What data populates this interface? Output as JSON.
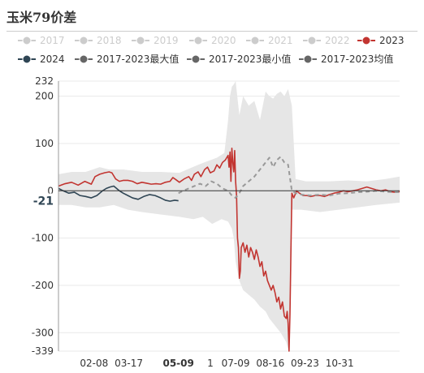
{
  "title": "玉米79价差",
  "colors": {
    "inactive": "#cccccc",
    "active_2023": "#c23531",
    "line_2024": "#2f4554",
    "band_fill": "#e6e6e6",
    "mean": "#999999",
    "grid": "#e9e9e9",
    "axis": "#333333",
    "current_marker": "#2f4554"
  },
  "legend": [
    {
      "label": "2017",
      "color": "#cccccc",
      "icon": "circle",
      "active": false
    },
    {
      "label": "2018",
      "color": "#cccccc",
      "icon": "circle",
      "active": false
    },
    {
      "label": "2019",
      "color": "#cccccc",
      "icon": "circle",
      "active": false
    },
    {
      "label": "2020",
      "color": "#cccccc",
      "icon": "circle",
      "active": false
    },
    {
      "label": "2021",
      "color": "#cccccc",
      "icon": "circle",
      "active": false
    },
    {
      "label": "2022",
      "color": "#cccccc",
      "icon": "circle",
      "active": false
    },
    {
      "label": "2023",
      "color": "#c23531",
      "icon": "circle",
      "active": true
    },
    {
      "label": "2024",
      "color": "#2f4554",
      "icon": "circle",
      "active": true
    },
    {
      "label": "2017-2023最大值",
      "color": "#666666",
      "icon": "circle",
      "active": true
    },
    {
      "label": "2017-2023最小值",
      "color": "#666666",
      "icon": "circle",
      "active": true
    },
    {
      "label": "2017-2023均值",
      "color": "#666666",
      "icon": "circle",
      "active": true
    }
  ],
  "chart_data": {
    "type": "line",
    "title": "玉米79价差",
    "y_ticks": [
      232,
      200,
      100,
      0,
      -100,
      -200,
      -300,
      -339
    ],
    "ylim": [
      -339,
      232
    ],
    "x_ticks": [
      "02-08",
      "03-17",
      "05-09",
      "07-09",
      "08-16",
      "09-23",
      "10-31"
    ],
    "x_tick_positions": [
      39,
      76,
      129,
      190,
      227,
      264,
      301
    ],
    "xlim": [
      1,
      365
    ],
    "current_value_label": "-21",
    "current_value": -21,
    "highlight_x_label": "05-09",
    "partial_tick_label": "1",
    "series": [
      {
        "name": "2023",
        "color": "#c23531",
        "points": [
          [
            1,
            10
          ],
          [
            8,
            15
          ],
          [
            15,
            18
          ],
          [
            22,
            12
          ],
          [
            29,
            20
          ],
          [
            36,
            14
          ],
          [
            40,
            30
          ],
          [
            45,
            35
          ],
          [
            50,
            38
          ],
          [
            55,
            40
          ],
          [
            58,
            38
          ],
          [
            62,
            25
          ],
          [
            66,
            20
          ],
          [
            70,
            22
          ],
          [
            75,
            22
          ],
          [
            80,
            20
          ],
          [
            85,
            15
          ],
          [
            90,
            18
          ],
          [
            95,
            16
          ],
          [
            100,
            14
          ],
          [
            105,
            15
          ],
          [
            110,
            14
          ],
          [
            115,
            18
          ],
          [
            120,
            20
          ],
          [
            123,
            28
          ],
          [
            126,
            24
          ],
          [
            130,
            18
          ],
          [
            135,
            25
          ],
          [
            140,
            30
          ],
          [
            143,
            22
          ],
          [
            146,
            35
          ],
          [
            150,
            40
          ],
          [
            153,
            30
          ],
          [
            157,
            45
          ],
          [
            160,
            50
          ],
          [
            163,
            38
          ],
          [
            167,
            42
          ],
          [
            170,
            55
          ],
          [
            173,
            48
          ],
          [
            176,
            60
          ],
          [
            179,
            65
          ],
          [
            182,
            75
          ],
          [
            183,
            50
          ],
          [
            184,
            82
          ],
          [
            185,
            20
          ],
          [
            186,
            90
          ],
          [
            187,
            60
          ],
          [
            188,
            40
          ],
          [
            189,
            85
          ],
          [
            190,
            20
          ],
          [
            191,
            -10
          ],
          [
            192,
            -100
          ],
          [
            193,
            -120
          ],
          [
            194,
            -185
          ],
          [
            195,
            -170
          ],
          [
            196,
            -120
          ],
          [
            198,
            -110
          ],
          [
            200,
            -130
          ],
          [
            202,
            -115
          ],
          [
            204,
            -140
          ],
          [
            206,
            -120
          ],
          [
            208,
            -130
          ],
          [
            210,
            -145
          ],
          [
            212,
            -125
          ],
          [
            214,
            -140
          ],
          [
            216,
            -160
          ],
          [
            218,
            -150
          ],
          [
            220,
            -180
          ],
          [
            222,
            -170
          ],
          [
            224,
            -190
          ],
          [
            226,
            -200
          ],
          [
            228,
            -210
          ],
          [
            230,
            -200
          ],
          [
            232,
            -215
          ],
          [
            234,
            -235
          ],
          [
            236,
            -225
          ],
          [
            238,
            -250
          ],
          [
            240,
            -235
          ],
          [
            242,
            -265
          ],
          [
            244,
            -270
          ],
          [
            245,
            -255
          ],
          [
            246,
            -280
          ],
          [
            247,
            -339
          ],
          [
            248,
            -260
          ],
          [
            249,
            -130
          ],
          [
            250,
            -5
          ],
          [
            252,
            -15
          ],
          [
            255,
            0
          ],
          [
            258,
            -5
          ],
          [
            262,
            -10
          ],
          [
            266,
            -10
          ],
          [
            270,
            -12
          ],
          [
            275,
            -10
          ],
          [
            280,
            -10
          ],
          [
            285,
            -12
          ],
          [
            290,
            -8
          ],
          [
            295,
            -5
          ],
          [
            300,
            -3
          ],
          [
            305,
            0
          ],
          [
            310,
            -2
          ],
          [
            315,
            0
          ],
          [
            320,
            2
          ],
          [
            325,
            5
          ],
          [
            330,
            8
          ],
          [
            335,
            5
          ],
          [
            340,
            2
          ],
          [
            345,
            0
          ],
          [
            350,
            2
          ],
          [
            355,
            -2
          ],
          [
            360,
            -3
          ],
          [
            365,
            -2
          ]
        ]
      },
      {
        "name": "2024",
        "color": "#2f4554",
        "points": [
          [
            1,
            5
          ],
          [
            6,
            0
          ],
          [
            12,
            -5
          ],
          [
            18,
            -3
          ],
          [
            24,
            -10
          ],
          [
            30,
            -12
          ],
          [
            36,
            -15
          ],
          [
            42,
            -10
          ],
          [
            48,
            0
          ],
          [
            52,
            5
          ],
          [
            56,
            8
          ],
          [
            60,
            10
          ],
          [
            63,
            5
          ],
          [
            66,
            0
          ],
          [
            70,
            -5
          ],
          [
            75,
            -10
          ],
          [
            80,
            -15
          ],
          [
            86,
            -18
          ],
          [
            92,
            -12
          ],
          [
            98,
            -8
          ],
          [
            104,
            -10
          ],
          [
            110,
            -15
          ],
          [
            115,
            -20
          ],
          [
            120,
            -22
          ],
          [
            125,
            -20
          ],
          [
            129,
            -21
          ]
        ]
      },
      {
        "name": "2017-2023均值",
        "color": "#999999",
        "style": "dashed",
        "points": [
          [
            129,
            -5
          ],
          [
            134,
            0
          ],
          [
            140,
            5
          ],
          [
            146,
            10
          ],
          [
            152,
            15
          ],
          [
            158,
            10
          ],
          [
            164,
            20
          ],
          [
            170,
            15
          ],
          [
            176,
            5
          ],
          [
            182,
            0
          ],
          [
            186,
            -10
          ],
          [
            190,
            -15
          ],
          [
            194,
            -5
          ],
          [
            198,
            10
          ],
          [
            204,
            20
          ],
          [
            210,
            30
          ],
          [
            216,
            45
          ],
          [
            222,
            60
          ],
          [
            226,
            70
          ],
          [
            230,
            50
          ],
          [
            234,
            65
          ],
          [
            238,
            72
          ],
          [
            242,
            60
          ],
          [
            246,
            55
          ],
          [
            250,
            0
          ],
          [
            254,
            -5
          ],
          [
            260,
            -8
          ],
          [
            270,
            -10
          ],
          [
            280,
            -8
          ],
          [
            290,
            -10
          ],
          [
            300,
            -6
          ],
          [
            310,
            -5
          ],
          [
            320,
            -3
          ],
          [
            330,
            -2
          ],
          [
            340,
            0
          ],
          [
            350,
            -2
          ],
          [
            360,
            -3
          ],
          [
            365,
            -3
          ]
        ]
      }
    ],
    "band": {
      "name": "2017-2023最大值/最小值",
      "upper": [
        [
          1,
          35
        ],
        [
          15,
          40
        ],
        [
          30,
          40
        ],
        [
          45,
          50
        ],
        [
          55,
          45
        ],
        [
          70,
          45
        ],
        [
          90,
          40
        ],
        [
          110,
          40
        ],
        [
          130,
          38
        ],
        [
          150,
          55
        ],
        [
          170,
          70
        ],
        [
          178,
          80
        ],
        [
          182,
          150
        ],
        [
          184,
          200
        ],
        [
          186,
          220
        ],
        [
          188,
          225
        ],
        [
          190,
          232
        ],
        [
          194,
          160
        ],
        [
          198,
          200
        ],
        [
          204,
          180
        ],
        [
          210,
          190
        ],
        [
          216,
          150
        ],
        [
          222,
          210
        ],
        [
          226,
          200
        ],
        [
          230,
          195
        ],
        [
          234,
          205
        ],
        [
          238,
          210
        ],
        [
          242,
          200
        ],
        [
          246,
          215
        ],
        [
          250,
          180
        ],
        [
          254,
          25
        ],
        [
          265,
          20
        ],
        [
          290,
          20
        ],
        [
          310,
          22
        ],
        [
          330,
          20
        ],
        [
          350,
          25
        ],
        [
          365,
          30
        ]
      ],
      "lower": [
        [
          1,
          -30
        ],
        [
          15,
          -30
        ],
        [
          30,
          -35
        ],
        [
          45,
          -35
        ],
        [
          60,
          -30
        ],
        [
          75,
          -40
        ],
        [
          90,
          -45
        ],
        [
          110,
          -50
        ],
        [
          130,
          -55
        ],
        [
          145,
          -60
        ],
        [
          155,
          -55
        ],
        [
          165,
          -70
        ],
        [
          175,
          -60
        ],
        [
          182,
          -65
        ],
        [
          186,
          -80
        ],
        [
          188,
          -100
        ],
        [
          190,
          -150
        ],
        [
          194,
          -190
        ],
        [
          198,
          -210
        ],
        [
          204,
          -220
        ],
        [
          210,
          -230
        ],
        [
          216,
          -245
        ],
        [
          222,
          -255
        ],
        [
          226,
          -270
        ],
        [
          232,
          -285
        ],
        [
          238,
          -300
        ],
        [
          244,
          -320
        ],
        [
          246,
          -335
        ],
        [
          248,
          -300
        ],
        [
          250,
          -40
        ],
        [
          260,
          -40
        ],
        [
          280,
          -45
        ],
        [
          300,
          -40
        ],
        [
          320,
          -35
        ],
        [
          340,
          -30
        ],
        [
          365,
          -25
        ]
      ]
    },
    "grid": true,
    "legend_position": "top"
  }
}
